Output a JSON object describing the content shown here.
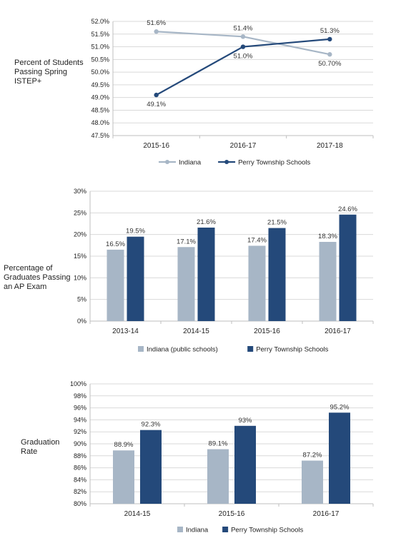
{
  "colors": {
    "light": "#a7b6c6",
    "dark": "#24497a",
    "grid": "#d9d9d9",
    "axis": "#bfbfbf"
  },
  "chart_data": [
    {
      "type": "line",
      "ylabel_lines": [
        "Percent of Students",
        "Passing Spring",
        "ISTEP+"
      ],
      "categories": [
        "2015-16",
        "2016-17",
        "2017-18"
      ],
      "yticks": [
        "47.5%",
        "48.0%",
        "48.5%",
        "49.0%",
        "49.5%",
        "50.0%",
        "50.5%",
        "51.0%",
        "51.5%",
        "52.0%"
      ],
      "ylim": [
        47.5,
        52.0
      ],
      "series": [
        {
          "name": "Indiana",
          "values": [
            51.6,
            51.4,
            50.7
          ],
          "labels": [
            "51.6%",
            "51.4%",
            "50.70%"
          ]
        },
        {
          "name": "Perry Township Schools",
          "values": [
            49.1,
            51.0,
            51.3
          ],
          "labels": [
            "49.1%",
            "51.0%",
            "51.3%"
          ]
        }
      ],
      "legend": "bottom"
    },
    {
      "type": "bar",
      "ylabel_lines": [
        "Percentage of",
        "Graduates Passing",
        "an AP Exam"
      ],
      "categories": [
        "2013-14",
        "2014-15",
        "2015-16",
        "2016-17"
      ],
      "yticks": [
        "0%",
        "5%",
        "10%",
        "15%",
        "20%",
        "25%",
        "30%"
      ],
      "ylim": [
        0,
        30
      ],
      "series": [
        {
          "name": "Indiana (public schools)",
          "values": [
            16.5,
            17.1,
            17.4,
            18.3
          ],
          "labels": [
            "16.5%",
            "17.1%",
            "17.4%",
            "18.3%"
          ]
        },
        {
          "name": "Perry Township Schools",
          "values": [
            19.5,
            21.6,
            21.5,
            24.6
          ],
          "labels": [
            "19.5%",
            "21.6%",
            "21.5%",
            "24.6%"
          ]
        }
      ],
      "legend": "bottom"
    },
    {
      "type": "bar",
      "ylabel_lines": [
        "Graduation",
        "Rate"
      ],
      "categories": [
        "2014-15",
        "2015-16",
        "2016-17"
      ],
      "yticks": [
        "80%",
        "82%",
        "84%",
        "86%",
        "88%",
        "90%",
        "92%",
        "94%",
        "96%",
        "98%",
        "100%"
      ],
      "ylim": [
        80,
        100
      ],
      "series": [
        {
          "name": "Indiana",
          "values": [
            88.9,
            89.1,
            87.2
          ],
          "labels": [
            "88.9%",
            "89.1%",
            "87.2%"
          ]
        },
        {
          "name": "Perry Township Schools",
          "values": [
            92.3,
            93.0,
            95.2
          ],
          "labels": [
            "92.3%",
            "93%",
            "95.2%"
          ]
        }
      ],
      "legend": "bottom"
    }
  ]
}
